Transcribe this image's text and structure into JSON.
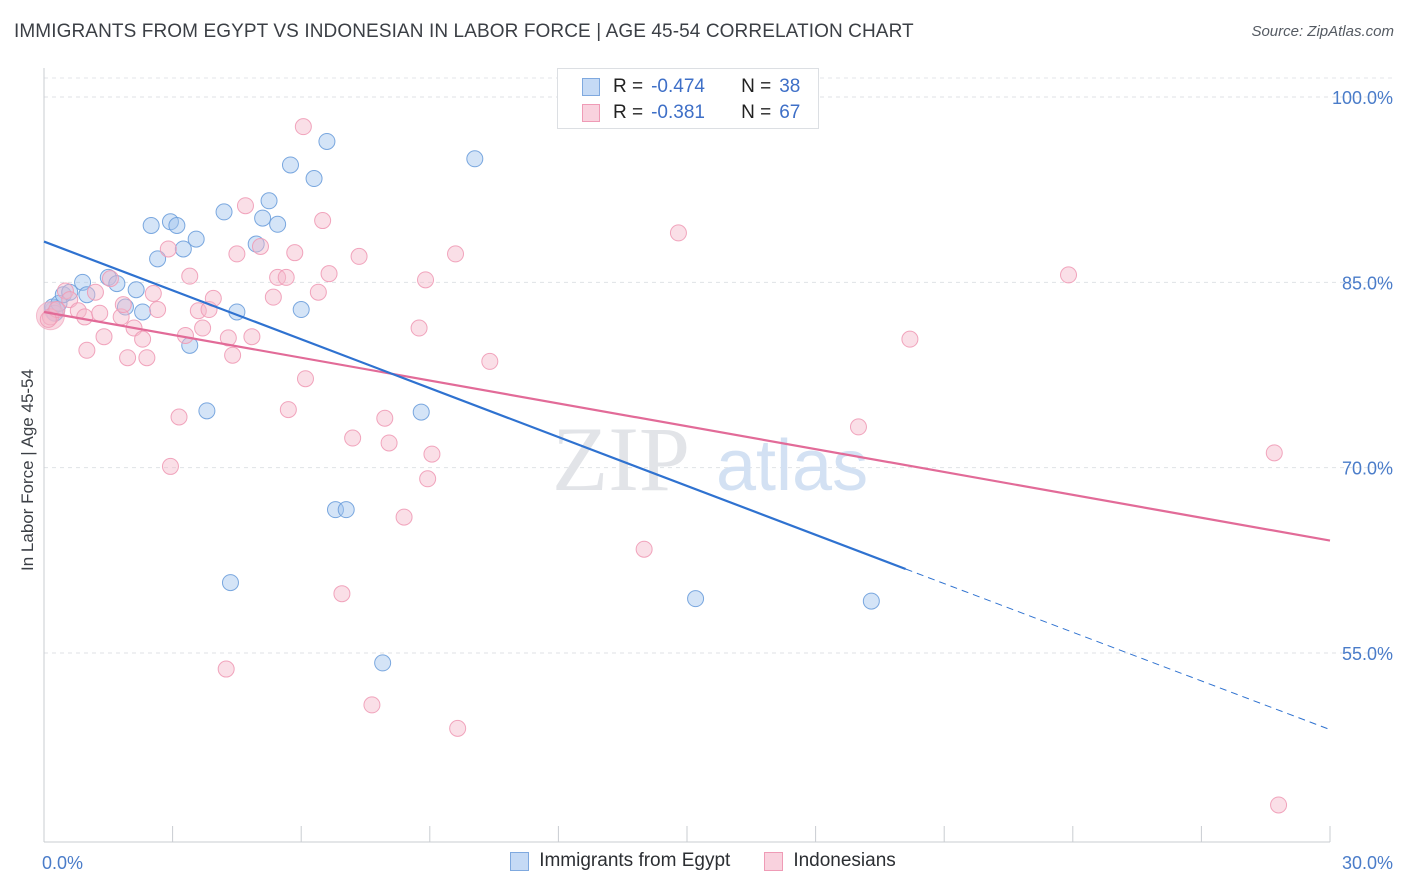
{
  "title": "IMMIGRANTS FROM EGYPT VS INDONESIAN IN LABOR FORCE | AGE 45-54 CORRELATION CHART",
  "source": "Source: ZipAtlas.com",
  "watermark": {
    "zip": "ZIP",
    "atlas": "atlas"
  },
  "colors": {
    "blue": "#9fc3ee",
    "blue_line": "#2f72d0",
    "pink": "#f4b7c9",
    "pink_line": "#e26b98",
    "tick_text": "#4a7cc9"
  },
  "stats": [
    {
      "series": "Immigrants from Egypt",
      "r_label": "R =",
      "r_value": "-0.474",
      "n_label": "N =",
      "n_value": "38"
    },
    {
      "series": "Indonesians",
      "r_label": "R =",
      "r_value": "-0.381",
      "n_label": "N =",
      "n_value": "67"
    }
  ],
  "chart_data": {
    "type": "scatter",
    "title": "IMMIGRANTS FROM EGYPT VS INDONESIAN IN LABOR FORCE | AGE 45-54 CORRELATION CHART",
    "xlabel": "",
    "ylabel": "In Labor Force | Age 45-54",
    "xlim": [
      0,
      30
    ],
    "ylim": [
      40,
      103.5
    ],
    "x_tick_labels": [
      "0.0%",
      "30.0%"
    ],
    "y_ticks": [
      55,
      70,
      85,
      100
    ],
    "y_tick_labels": [
      "55.0%",
      "70.0%",
      "85.0%",
      "100.0%"
    ],
    "series": [
      {
        "name": "Immigrants from Egypt",
        "color": "#9fc3ee",
        "points": [
          [
            0.2,
            83.0
          ],
          [
            0.25,
            82.5
          ],
          [
            0.35,
            83.3
          ],
          [
            0.45,
            84.0
          ],
          [
            0.6,
            84.2
          ],
          [
            0.9,
            85.0
          ],
          [
            1.0,
            84.0
          ],
          [
            1.5,
            85.4
          ],
          [
            1.7,
            84.9
          ],
          [
            1.9,
            83.0
          ],
          [
            2.15,
            84.4
          ],
          [
            2.3,
            82.6
          ],
          [
            2.5,
            89.6
          ],
          [
            2.65,
            86.9
          ],
          [
            2.95,
            89.9
          ],
          [
            3.1,
            89.6
          ],
          [
            3.25,
            87.7
          ],
          [
            3.4,
            79.9
          ],
          [
            3.55,
            88.5
          ],
          [
            3.8,
            74.6
          ],
          [
            4.2,
            90.7
          ],
          [
            4.35,
            60.7
          ],
          [
            4.5,
            82.6
          ],
          [
            4.95,
            88.1
          ],
          [
            5.1,
            90.2
          ],
          [
            5.25,
            91.6
          ],
          [
            5.45,
            89.7
          ],
          [
            5.75,
            94.5
          ],
          [
            6.0,
            82.8
          ],
          [
            6.3,
            93.4
          ],
          [
            6.6,
            96.4
          ],
          [
            6.8,
            66.6
          ],
          [
            7.05,
            66.6
          ],
          [
            7.9,
            54.2
          ],
          [
            8.8,
            74.5
          ],
          [
            10.05,
            95.0
          ],
          [
            15.2,
            59.4
          ],
          [
            19.3,
            59.2
          ]
        ],
        "trend": {
          "x": [
            0,
            20.1
          ],
          "y": [
            88.3,
            61.8
          ],
          "dashed_x": [
            20.1,
            30
          ],
          "dashed_y": [
            61.8,
            48.8
          ]
        }
      },
      {
        "name": "Indonesians",
        "color": "#f4b7c9",
        "points": [
          [
            0.15,
            82.2
          ],
          [
            0.3,
            82.8
          ],
          [
            0.5,
            84.3
          ],
          [
            0.6,
            83.6
          ],
          [
            0.8,
            82.7
          ],
          [
            0.95,
            82.2
          ],
          [
            1.0,
            79.5
          ],
          [
            1.2,
            84.2
          ],
          [
            1.3,
            82.5
          ],
          [
            1.4,
            80.6
          ],
          [
            1.55,
            85.3
          ],
          [
            1.8,
            82.2
          ],
          [
            1.85,
            83.2
          ],
          [
            1.95,
            78.9
          ],
          [
            2.1,
            81.3
          ],
          [
            2.3,
            80.4
          ],
          [
            2.4,
            78.9
          ],
          [
            2.55,
            84.1
          ],
          [
            2.65,
            82.8
          ],
          [
            2.9,
            87.7
          ],
          [
            2.95,
            70.1
          ],
          [
            3.15,
            74.1
          ],
          [
            3.3,
            80.7
          ],
          [
            3.4,
            85.5
          ],
          [
            3.6,
            82.7
          ],
          [
            3.7,
            81.3
          ],
          [
            3.85,
            82.8
          ],
          [
            3.95,
            83.7
          ],
          [
            4.25,
            53.7
          ],
          [
            4.3,
            80.5
          ],
          [
            4.4,
            79.1
          ],
          [
            4.5,
            87.3
          ],
          [
            4.7,
            91.2
          ],
          [
            4.85,
            80.6
          ],
          [
            5.05,
            87.9
          ],
          [
            5.35,
            83.8
          ],
          [
            5.45,
            85.4
          ],
          [
            5.65,
            85.4
          ],
          [
            5.7,
            74.7
          ],
          [
            5.85,
            87.4
          ],
          [
            6.05,
            97.6
          ],
          [
            6.1,
            77.2
          ],
          [
            6.4,
            84.2
          ],
          [
            6.5,
            90.0
          ],
          [
            6.65,
            85.7
          ],
          [
            6.95,
            59.8
          ],
          [
            7.2,
            72.4
          ],
          [
            7.35,
            87.1
          ],
          [
            7.65,
            50.8
          ],
          [
            7.95,
            74.0
          ],
          [
            8.05,
            72.0
          ],
          [
            8.4,
            66.0
          ],
          [
            8.75,
            81.3
          ],
          [
            8.9,
            85.2
          ],
          [
            8.95,
            69.1
          ],
          [
            9.05,
            71.1
          ],
          [
            9.6,
            87.3
          ],
          [
            9.65,
            48.9
          ],
          [
            10.4,
            78.6
          ],
          [
            14.0,
            63.4
          ],
          [
            14.8,
            89.0
          ],
          [
            19.0,
            73.3
          ],
          [
            20.2,
            80.4
          ],
          [
            23.9,
            85.6
          ],
          [
            28.7,
            71.2
          ],
          [
            28.8,
            42.7
          ],
          [
            0.1,
            82.0
          ]
        ],
        "trend": {
          "x": [
            0,
            30
          ],
          "y": [
            82.6,
            64.1
          ]
        }
      }
    ],
    "legend": [
      "Immigrants from Egypt",
      "Indonesians"
    ]
  }
}
